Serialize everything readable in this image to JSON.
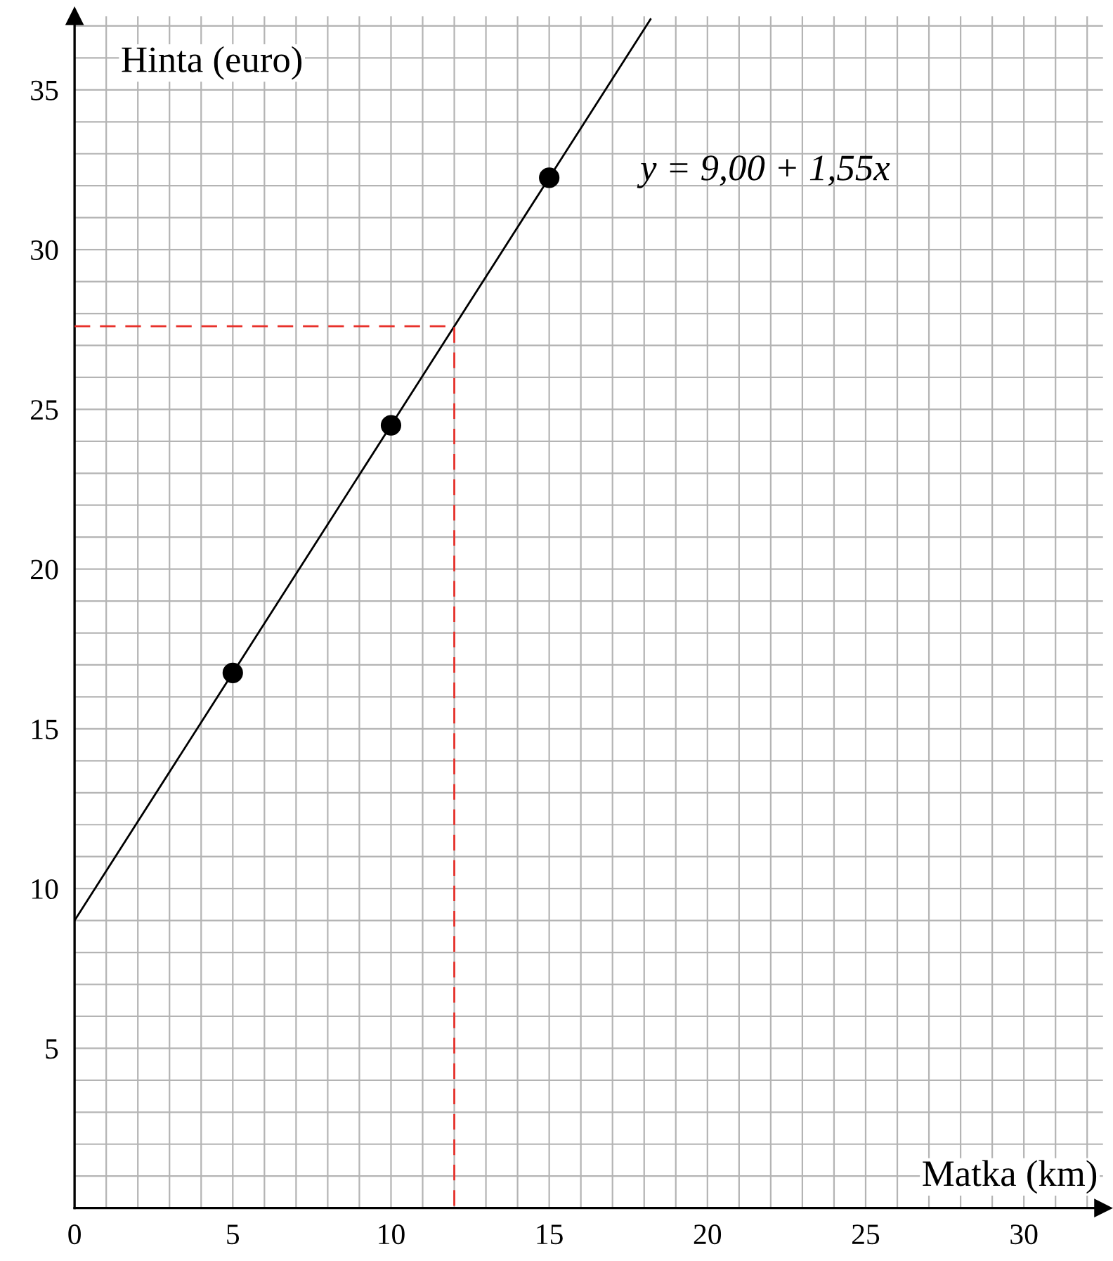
{
  "chart_data": {
    "type": "scatter",
    "xlabel": "Matka (km)",
    "ylabel": "Hinta (euro)",
    "series": [
      {
        "color": "#000000",
        "x": [
          5,
          10,
          15
        ],
        "values": [
          16.75,
          24.5,
          32.25
        ],
        "marker": "circle"
      },
      {
        "type": "line",
        "color": "#000000",
        "x": [
          0,
          18.2
        ],
        "values": [
          9.0,
          37.21
        ],
        "line_style": "solid",
        "marker": "none"
      },
      {
        "type": "line",
        "color": "#e8302a",
        "x": [
          0,
          12,
          12
        ],
        "values": [
          27.6,
          27.6,
          0
        ],
        "line_style": "dashed",
        "marker": "none"
      }
    ],
    "annotations": [
      "y = 9,00 + 1,55x"
    ],
    "xlim": [
      0,
      32.5
    ],
    "ylim": [
      0,
      37.3
    ],
    "xticks": [
      0,
      {
        "value": 1,
        "label": null
      },
      {
        "value": 2,
        "label": null
      },
      {
        "value": 3,
        "label": null
      },
      {
        "value": 4,
        "label": null
      },
      5,
      {
        "value": 6,
        "label": null
      },
      {
        "value": 7,
        "label": null
      },
      {
        "value": 8,
        "label": null
      },
      {
        "value": 9,
        "label": null
      },
      10,
      {
        "value": 11,
        "label": null
      },
      {
        "value": 12,
        "label": null
      },
      {
        "value": 13,
        "label": null
      },
      {
        "value": 14,
        "label": null
      },
      15,
      {
        "value": 16,
        "label": null
      },
      {
        "value": 17,
        "label": null
      },
      {
        "value": 18,
        "label": null
      },
      {
        "value": 19,
        "label": null
      },
      20,
      {
        "value": 21,
        "label": null
      },
      {
        "value": 22,
        "label": null
      },
      {
        "value": 23,
        "label": null
      },
      {
        "value": 24,
        "label": null
      },
      25,
      {
        "value": 26,
        "label": null
      },
      {
        "value": 27,
        "label": null
      },
      {
        "value": 28,
        "label": null
      },
      {
        "value": 29,
        "label": null
      },
      30,
      {
        "value": 31,
        "label": null
      },
      {
        "value": 32,
        "label": null
      }
    ],
    "yticks": [
      {
        "value": 1,
        "label": null
      },
      {
        "value": 2,
        "label": null
      },
      {
        "value": 3,
        "label": null
      },
      {
        "value": 4,
        "label": null
      },
      5,
      {
        "value": 6,
        "label": null
      },
      {
        "value": 7,
        "label": null
      },
      {
        "value": 8,
        "label": null
      },
      {
        "value": 9,
        "label": null
      },
      10,
      {
        "value": 11,
        "label": null
      },
      {
        "value": 12,
        "label": null
      },
      {
        "value": 13,
        "label": null
      },
      {
        "value": 14,
        "label": null
      },
      15,
      {
        "value": 16,
        "label": null
      },
      {
        "value": 17,
        "label": null
      },
      {
        "value": 18,
        "label": null
      },
      {
        "value": 19,
        "label": null
      },
      20,
      {
        "value": 21,
        "label": null
      },
      {
        "value": 22,
        "label": null
      },
      {
        "value": 23,
        "label": null
      },
      {
        "value": 24,
        "label": null
      },
      25,
      {
        "value": 26,
        "label": null
      },
      {
        "value": 27,
        "label": null
      },
      {
        "value": 28,
        "label": null
      },
      {
        "value": 29,
        "label": null
      },
      30,
      {
        "value": 31,
        "label": null
      },
      {
        "value": 32,
        "label": null
      },
      {
        "value": 33,
        "label": null
      },
      {
        "value": 34,
        "label": null
      },
      35,
      {
        "value": 36,
        "label": null
      },
      {
        "value": 37,
        "label": null
      }
    ],
    "grid": true
  }
}
